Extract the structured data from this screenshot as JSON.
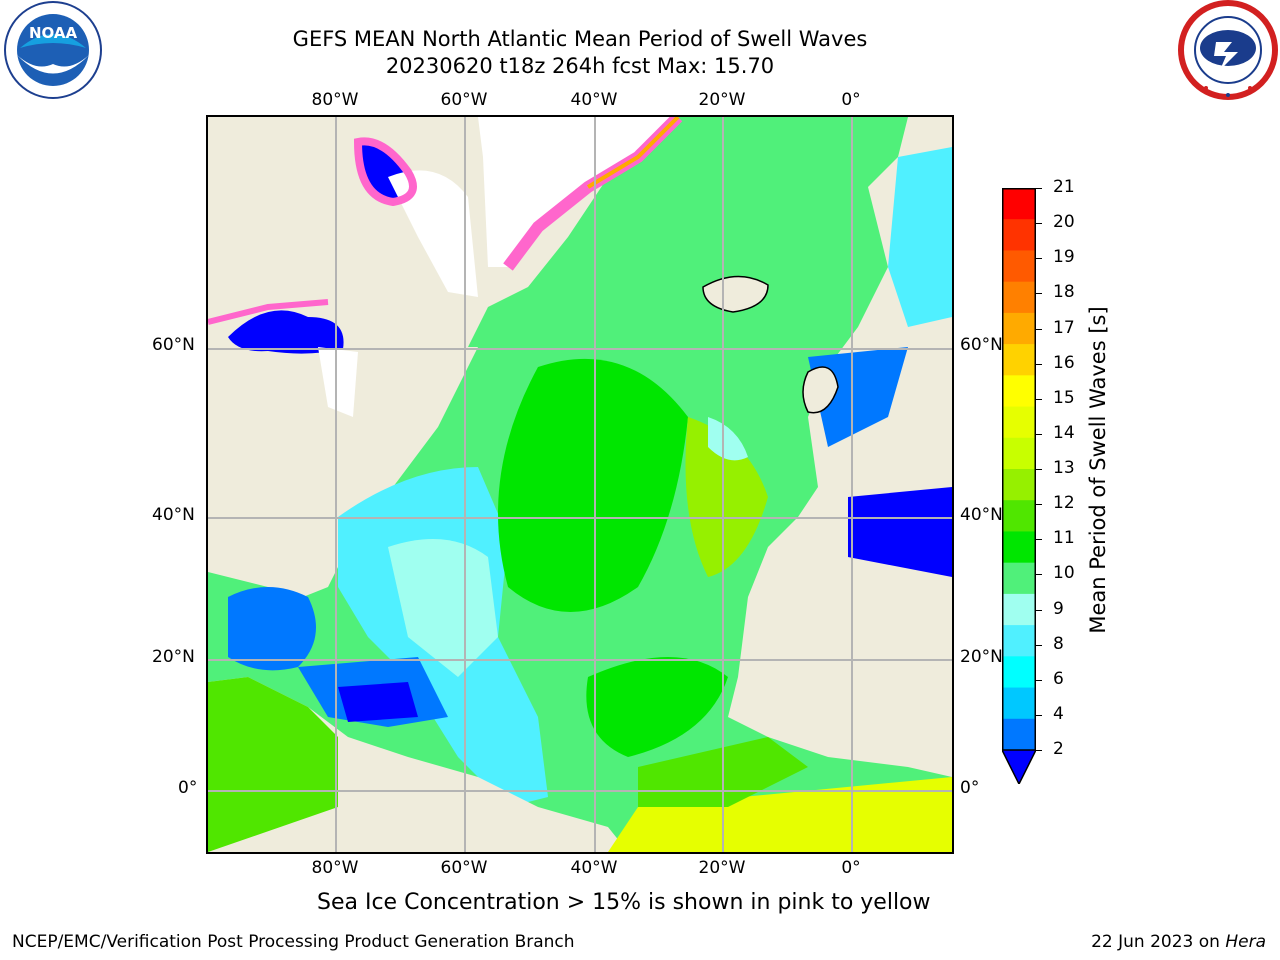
{
  "header": {
    "title_line1": "GEFS MEAN North Atlantic Mean Period of Swell Waves",
    "title_line2": "20230620 t18z 264h fcst   Max: 15.70"
  },
  "logos": {
    "left": {
      "name": "noaa-logo",
      "text": "NOAA",
      "ring_text": "NATIONAL OCEANIC AND ATMOSPHERIC ADMINISTRATION · U.S. DEPARTMENT OF COMMERCE"
    },
    "right": {
      "name": "nws-logo",
      "ring_text": "NATIONAL WEATHER SERVICE"
    }
  },
  "map": {
    "lon_labels": [
      "80°W",
      "60°W",
      "40°W",
      "20°W",
      "0°"
    ],
    "lat_labels": [
      "60°N",
      "40°N",
      "20°N",
      "0°"
    ],
    "colors": {
      "land": "#efecdc",
      "ice_white": "#ffffff",
      "gridline": "#b4b4b4"
    }
  },
  "colorbar": {
    "label": "Mean Period of Swell Waves [s]",
    "ticks": [
      "21",
      "20",
      "19",
      "18",
      "17",
      "16",
      "15",
      "14",
      "13",
      "12",
      "11",
      "10",
      "9",
      "8",
      "6",
      "4",
      "2"
    ],
    "colors": [
      "#ff0000",
      "#ff3300",
      "#ff5a00",
      "#ff8000",
      "#ffaa00",
      "#ffd200",
      "#ffff00",
      "#e6ff00",
      "#c8ff00",
      "#96f000",
      "#50e600",
      "#00e600",
      "#50f07a",
      "#a0fff0",
      "#50f0ff",
      "#00ffff",
      "#00c8ff",
      "#0078ff",
      "#0000ff"
    ]
  },
  "subtitle": "Sea Ice Concentration > 15% is shown in pink to yellow",
  "footer": {
    "left": "NCEP/EMC/Verification Post Processing Product Generation Branch",
    "right_prefix": "22 Jun 2023 on ",
    "right_machine": "Hera"
  }
}
